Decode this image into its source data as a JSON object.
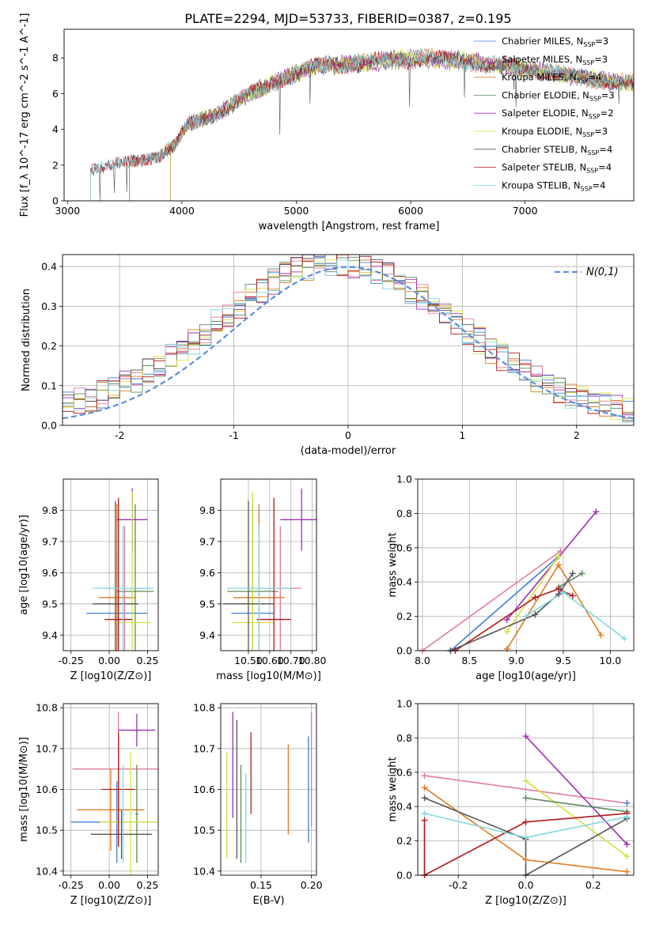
{
  "figure": {
    "title": "PLATE=2294, MJD=53733, FIBERID=0387, z=0.195"
  },
  "palette": {
    "Chabrier MILES": "#3f7fd6",
    "Salpeter MILES": "#e07a9a",
    "Kroupa MILES": "#e07a1f",
    "Chabrier ELODIE": "#5c8a5c",
    "Salpeter ELODIE": "#9b30b0",
    "Kroupa ELODIE": "#d8e040",
    "Chabrier STELIB": "#555555",
    "Salpeter STELIB": "#b01a1a",
    "Kroupa STELIB": "#80d8e0"
  },
  "chart_data": [
    {
      "id": "spectrum",
      "type": "line",
      "xlabel": "wavelength [Angstrom, rest frame]",
      "ylabel": "Flux [f_λ 10^-17 erg cm^-2 s^-1 A^-1]",
      "xlim": [
        2970,
        7950
      ],
      "ylim": [
        0,
        9.6
      ],
      "xticks": [
        3000,
        4000,
        5000,
        6000,
        7000
      ],
      "yticks": [
        0,
        2,
        4,
        6,
        8
      ],
      "legend_position": "upper-right",
      "continuum": {
        "x": [
          3200,
          3400,
          3600,
          3800,
          3950,
          4050,
          4300,
          4600,
          4900,
          5200,
          5500,
          5800,
          6100,
          6400,
          6700,
          7000,
          7300,
          7600,
          7950
        ],
        "y": [
          1.8,
          2.1,
          2.3,
          2.6,
          3.3,
          4.4,
          5.0,
          6.2,
          7.1,
          7.8,
          7.9,
          8.1,
          8.2,
          8.1,
          7.9,
          7.6,
          7.3,
          7.0,
          6.8
        ]
      },
      "series": [
        {
          "name": "Chabrier MILES, N_SSP=3",
          "start": 3540
        },
        {
          "name": "Salpeter MILES, N_SSP=3",
          "start": 3540
        },
        {
          "name": "Kroupa MILES, N_SSP=4",
          "start": 3540
        },
        {
          "name": "Chabrier ELODIE, N_SSP=3",
          "start": 3900
        },
        {
          "name": "Salpeter ELODIE, N_SSP=2",
          "start": 3900
        },
        {
          "name": "Kroupa ELODIE, N_SSP=3",
          "start": 3900
        },
        {
          "name": "Chabrier STELIB, N_SSP=4",
          "start": 3200
        },
        {
          "name": "Salpeter STELIB, N_SSP=4",
          "start": 3200
        },
        {
          "name": "Kroupa STELIB, N_SSP=4",
          "start": 3200
        }
      ]
    },
    {
      "id": "residuals",
      "type": "line",
      "xlabel": "(data-model)/error",
      "ylabel": "Normed distribution",
      "xlim": [
        -2.5,
        2.5
      ],
      "ylim": [
        0,
        0.43
      ],
      "xticks": [
        -2,
        -1,
        0,
        1,
        2
      ],
      "yticks": [
        0.0,
        0.1,
        0.2,
        0.3,
        0.4
      ],
      "grid": true,
      "legend_position": "upper-right",
      "reference": {
        "name": "N(0,1)",
        "mean": 0,
        "sigma": 1
      }
    },
    {
      "id": "age-vs-Z",
      "type": "scatter",
      "xlabel": "Z [log10(Z/Z⊙)]",
      "ylabel": "age  [log10(age/yr)]",
      "xlim": [
        -0.3,
        0.32
      ],
      "ylim": [
        9.35,
        9.9
      ],
      "xticks": [
        -0.25,
        0.0,
        0.25
      ],
      "yticks": [
        9.4,
        9.5,
        9.6,
        9.7,
        9.8
      ],
      "grid": true,
      "points": [
        {
          "model": "Chabrier MILES",
          "x": 0.05,
          "xerr": 0.2,
          "y": 9.47,
          "yerr": 0.2
        },
        {
          "model": "Salpeter MILES",
          "x": 0.1,
          "xerr": 0.12,
          "y": 9.55,
          "yerr": 0.2
        },
        {
          "model": "Kroupa MILES",
          "x": 0.05,
          "xerr": 0.12,
          "y": 9.52,
          "yerr": 0.3
        },
        {
          "model": "Chabrier ELODIE",
          "x": 0.17,
          "xerr": 0.12,
          "y": 9.54,
          "yerr": 0.28
        },
        {
          "model": "Salpeter ELODIE",
          "x": 0.15,
          "xerr": 0.1,
          "y": 9.77,
          "yerr": 0.1
        },
        {
          "model": "Kroupa ELODIE",
          "x": 0.15,
          "xerr": 0.12,
          "y": 9.44,
          "yerr": 0.42
        },
        {
          "model": "Chabrier STELIB",
          "x": 0.04,
          "xerr": 0.15,
          "y": 9.5,
          "yerr": 0.33
        },
        {
          "model": "Salpeter STELIB",
          "x": 0.06,
          "xerr": 0.09,
          "y": 9.45,
          "yerr": 0.39
        },
        {
          "model": "Kroupa STELIB",
          "x": 0.09,
          "xerr": 0.2,
          "y": 9.55,
          "yerr": 0.2
        }
      ]
    },
    {
      "id": "age-vs-mass",
      "type": "scatter",
      "xlabel": "mass [log10(M/M⊙)]",
      "ylabel": "",
      "xlim": [
        10.37,
        10.82
      ],
      "ylim": [
        9.35,
        9.9
      ],
      "xticks": [
        10.5,
        10.6,
        10.7,
        10.8
      ],
      "yticks": [
        9.4,
        9.5,
        9.6,
        9.7,
        9.8
      ],
      "grid": true,
      "points": [
        {
          "model": "Chabrier MILES",
          "x": 10.52,
          "xerr": 0.1,
          "y": 9.47,
          "yerr": 0.2
        },
        {
          "model": "Salpeter MILES",
          "x": 10.65,
          "xerr": 0.1,
          "y": 9.55,
          "yerr": 0.2
        },
        {
          "model": "Kroupa MILES",
          "x": 10.55,
          "xerr": 0.12,
          "y": 9.52,
          "yerr": 0.3
        },
        {
          "model": "Chabrier ELODIE",
          "x": 10.52,
          "xerr": 0.12,
          "y": 9.54,
          "yerr": 0.28
        },
        {
          "model": "Salpeter ELODIE",
          "x": 10.75,
          "xerr": 0.1,
          "y": 9.77,
          "yerr": 0.1
        },
        {
          "model": "Kroupa ELODIE",
          "x": 10.52,
          "xerr": 0.1,
          "y": 9.44,
          "yerr": 0.42
        },
        {
          "model": "Chabrier STELIB",
          "x": 10.5,
          "xerr": 0.12,
          "y": 9.5,
          "yerr": 0.33
        },
        {
          "model": "Salpeter STELIB",
          "x": 10.62,
          "xerr": 0.08,
          "y": 9.45,
          "yerr": 0.39
        },
        {
          "model": "Kroupa STELIB",
          "x": 10.55,
          "xerr": 0.15,
          "y": 9.55,
          "yerr": 0.2
        }
      ]
    },
    {
      "id": "mass-weight-vs-age",
      "type": "line",
      "xlabel": "age  [log10(age/yr)]",
      "ylabel": "mass weight",
      "xlim": [
        7.95,
        10.25
      ],
      "ylim": [
        0,
        1.0
      ],
      "xticks": [
        8.0,
        8.5,
        9.0,
        9.5,
        10.0
      ],
      "yticks": [
        0.0,
        0.2,
        0.4,
        0.6,
        0.8,
        1.0
      ],
      "grid": true,
      "series": [
        {
          "model": "Salpeter MILES",
          "x": [
            8.0,
            9.47
          ],
          "y": [
            0.0,
            0.58
          ]
        },
        {
          "model": "Chabrier MILES",
          "x": [
            8.3,
            9.45
          ],
          "y": [
            0.0,
            0.55
          ]
        },
        {
          "model": "Kroupa MILES",
          "x": [
            8.9,
            9.45,
            9.9
          ],
          "y": [
            0.01,
            0.5,
            0.09
          ]
        },
        {
          "model": "Salpeter ELODIE",
          "x": [
            8.9,
            9.85
          ],
          "y": [
            0.18,
            0.81
          ]
        },
        {
          "model": "Kroupa ELODIE",
          "x": [
            8.9,
            9.45
          ],
          "y": [
            0.11,
            0.55
          ]
        },
        {
          "model": "Chabrier ELODIE",
          "x": [
            9.45,
            9.7
          ],
          "y": [
            0.37,
            0.45
          ]
        },
        {
          "model": "Salpeter STELIB",
          "x": [
            8.35,
            9.2,
            9.45,
            9.6
          ],
          "y": [
            0.0,
            0.31,
            0.36,
            0.32
          ]
        },
        {
          "model": "Chabrier STELIB",
          "x": [
            8.3,
            9.2,
            9.45,
            9.6
          ],
          "y": [
            0.0,
            0.21,
            0.33,
            0.45
          ]
        },
        {
          "model": "Kroupa STELIB",
          "x": [
            9.1,
            9.5,
            10.15
          ],
          "y": [
            0.2,
            0.34,
            0.07
          ]
        }
      ]
    },
    {
      "id": "mass-vs-Z",
      "type": "scatter",
      "xlabel": "Z [log10(Z/Z⊙)]",
      "ylabel": "mass [log10(M/M⊙)]",
      "xlim": [
        -0.3,
        0.32
      ],
      "ylim": [
        10.39,
        10.81
      ],
      "xticks": [
        -0.25,
        0.0,
        0.25
      ],
      "yticks": [
        10.4,
        10.5,
        10.6,
        10.7,
        10.8
      ],
      "grid": true,
      "points": [
        {
          "model": "Chabrier MILES",
          "x": 0.05,
          "xerr": 0.3,
          "y": 10.52,
          "yerr": 0.1
        },
        {
          "model": "Salpeter MILES",
          "x": 0.06,
          "xerr": 0.3,
          "y": 10.65,
          "yerr": 0.14
        },
        {
          "model": "Kroupa MILES",
          "x": 0.01,
          "xerr": 0.22,
          "y": 10.55,
          "yerr": 0.1
        },
        {
          "model": "Chabrier ELODIE",
          "x": 0.18,
          "xerr": 0.01,
          "y": 10.54,
          "yerr": 0.12
        },
        {
          "model": "Salpeter ELODIE",
          "x": 0.18,
          "xerr": 0.12,
          "y": 10.745,
          "yerr": 0.04
        },
        {
          "model": "Kroupa ELODIE",
          "x": 0.14,
          "xerr": 0.2,
          "y": 10.52,
          "yerr": 0.17
        },
        {
          "model": "Chabrier STELIB",
          "x": 0.08,
          "xerr": 0.2,
          "y": 10.49,
          "yerr": 0.06
        },
        {
          "model": "Salpeter STELIB",
          "x": 0.06,
          "xerr": 0.11,
          "y": 10.6,
          "yerr": 0.14
        },
        {
          "model": "Kroupa STELIB",
          "x": 0.09,
          "xerr": 0.01,
          "y": 10.54,
          "yerr": 0.12
        }
      ]
    },
    {
      "id": "mass-vs-ebv",
      "type": "scatter",
      "xlabel": "E(B-V)",
      "ylabel": "",
      "xlim": [
        0.11,
        0.205
      ],
      "ylim": [
        10.39,
        10.81
      ],
      "xticks": [
        0.15,
        0.2
      ],
      "yticks": [
        10.4,
        10.5,
        10.6,
        10.7,
        10.8
      ],
      "grid": true,
      "points": [
        {
          "model": "Chabrier MILES",
          "x": 0.197,
          "y": 10.6,
          "yerr": 0.13
        },
        {
          "model": "Salpeter MILES",
          "x": 0.2,
          "y": 10.65,
          "yerr": 0.14
        },
        {
          "model": "Kroupa MILES",
          "x": 0.177,
          "y": 10.6,
          "yerr": 0.11
        },
        {
          "model": "Chabrier ELODIE",
          "x": 0.13,
          "y": 10.54,
          "yerr": 0.12
        },
        {
          "model": "Salpeter ELODIE",
          "x": 0.122,
          "y": 10.66,
          "yerr": 0.13
        },
        {
          "model": "Kroupa ELODIE",
          "x": 0.116,
          "y": 10.56,
          "yerr": 0.13
        },
        {
          "model": "Chabrier STELIB",
          "x": 0.126,
          "y": 10.6,
          "yerr": 0.17
        },
        {
          "model": "Salpeter STELIB",
          "x": 0.14,
          "y": 10.64,
          "yerr": 0.1
        },
        {
          "model": "Kroupa STELIB",
          "x": 0.135,
          "y": 10.53,
          "yerr": 0.11
        }
      ]
    },
    {
      "id": "mass-weight-vs-Z",
      "type": "line",
      "xlabel": "Z [log10(Z/Z⊙)]",
      "ylabel": "mass weight",
      "xlim": [
        -0.32,
        0.32
      ],
      "ylim": [
        0,
        1.0
      ],
      "xticks": [
        -0.2,
        0.0,
        0.2
      ],
      "yticks": [
        0.0,
        0.2,
        0.4,
        0.6,
        0.8,
        1.0
      ],
      "grid": true,
      "series": [
        {
          "model": "Salpeter MILES",
          "x": [
            -0.3,
            0.3
          ],
          "y": [
            0.58,
            0.42
          ]
        },
        {
          "model": "Kroupa MILES",
          "x": [
            -0.3,
            0.0,
            0.3
          ],
          "y": [
            0.51,
            0.09,
            0.02
          ]
        },
        {
          "model": "Salpeter ELODIE",
          "x": [
            0.0,
            0.3
          ],
          "y": [
            0.81,
            0.18
          ]
        },
        {
          "model": "Kroupa ELODIE",
          "x": [
            0.0,
            0.3
          ],
          "y": [
            0.55,
            0.11
          ]
        },
        {
          "model": "Chabrier ELODIE",
          "x": [
            0.0,
            0.3
          ],
          "y": [
            0.45,
            0.37
          ]
        },
        {
          "model": "Chabrier STELIB",
          "x": [
            -0.3,
            0.0,
            0.0,
            0.3
          ],
          "y": [
            0.45,
            0.21,
            0.0,
            0.33
          ]
        },
        {
          "model": "Salpeter STELIB",
          "x": [
            -0.3,
            -0.3,
            0.0,
            0.3
          ],
          "y": [
            0.32,
            0.0,
            0.31,
            0.36
          ]
        },
        {
          "model": "Kroupa STELIB",
          "x": [
            -0.3,
            0.0,
            0.3
          ],
          "y": [
            0.36,
            0.22,
            0.34
          ]
        },
        {
          "model": "Chabrier MILES",
          "x": [
            0.3
          ],
          "y": [
            0.42
          ]
        }
      ]
    }
  ]
}
